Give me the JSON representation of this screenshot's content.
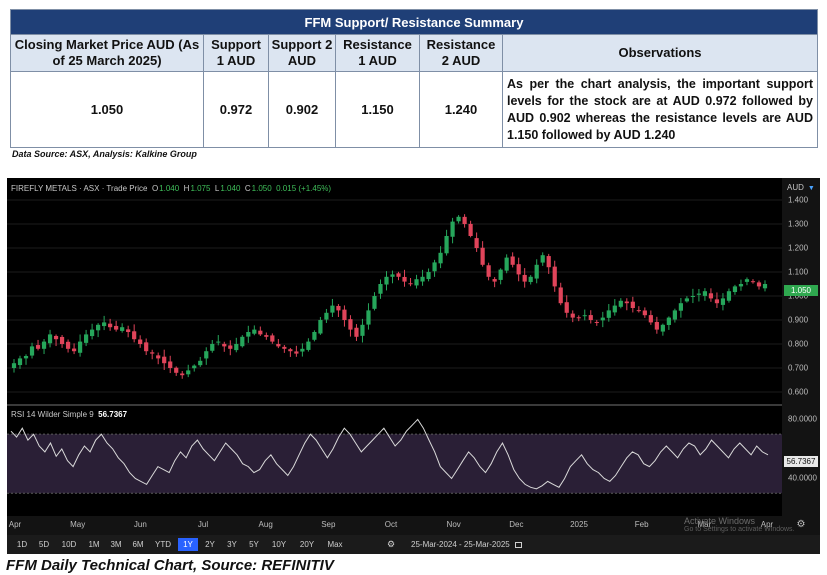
{
  "table": {
    "title": "FFM Support/  Resistance Summary",
    "headers": [
      "Closing Market Price AUD (As of 25 March 2025)",
      "Support 1 AUD",
      "Support 2 AUD",
      "Resistance 1 AUD",
      "Resistance 2 AUD",
      "Observations"
    ],
    "values": [
      "1.050",
      "0.972",
      "0.902",
      "1.150",
      "1.240"
    ],
    "observations": "As per the chart analysis, the important support levels for the stock are at AUD 0.972 followed by AUD 0.902 whereas the resistance levels are AUD 1.150 followed by AUD 1.240"
  },
  "source_note": "Data Source: ASX, Analysis: Kalkine Group",
  "chart": {
    "instrument": "FIREFLY METALS · ASX · Trade Price",
    "ohlc": [
      {
        "key": "O",
        "value": "1.040"
      },
      {
        "key": "H",
        "value": "1.075"
      },
      {
        "key": "L",
        "value": "1.040"
      },
      {
        "key": "C",
        "value": "1.050"
      }
    ],
    "change": "0.015 (+1.45%)",
    "currency_select": "AUD",
    "last_price_badge": "1.050",
    "rsi_label": "RSI 14 Wilder Simple 9",
    "rsi_value": "56.7367",
    "rsi_badge": "56.7367",
    "watermark_title": "Activate Windows",
    "watermark_sub": "Go to Settings to activate Windows.",
    "date_range": "25-Mar-2024 - 25-Mar-2025",
    "ranges": [
      "1D",
      "5D",
      "10D",
      "1M",
      "3M",
      "6M",
      "YTD",
      "1Y",
      "2Y",
      "3Y",
      "5Y",
      "10Y",
      "20Y",
      "Max"
    ],
    "active_range": "1Y",
    "colors": {
      "up": "#26a65b",
      "down": "#e0445a",
      "rsi_line": "#d9d9d9",
      "active": "#2962ff"
    }
  },
  "caption": "FFM Daily Technical Chart, Source: REFINITIV",
  "chart_data": [
    {
      "type": "candlestick",
      "title": "FIREFLY METALS · ASX · Trade Price",
      "x_ticks": [
        "Apr",
        "May",
        "Jun",
        "Jul",
        "Aug",
        "Sep",
        "Oct",
        "Nov",
        "Dec",
        "2025",
        "Feb",
        "Mar",
        "Apr"
      ],
      "y_ticks": [
        "1.400",
        "1.300",
        "1.200",
        "1.100",
        "1.000",
        "0.900",
        "0.800",
        "0.700",
        "0.600"
      ],
      "ylim": [
        0.6,
        1.45
      ],
      "close_path": [
        0.72,
        0.74,
        0.75,
        0.79,
        0.78,
        0.81,
        0.84,
        0.82,
        0.8,
        0.78,
        0.77,
        0.81,
        0.84,
        0.86,
        0.88,
        0.89,
        0.87,
        0.86,
        0.87,
        0.85,
        0.82,
        0.8,
        0.77,
        0.76,
        0.74,
        0.72,
        0.7,
        0.68,
        0.67,
        0.69,
        0.71,
        0.73,
        0.77,
        0.8,
        0.81,
        0.79,
        0.78,
        0.8,
        0.83,
        0.85,
        0.86,
        0.84,
        0.83,
        0.81,
        0.79,
        0.78,
        0.77,
        0.76,
        0.78,
        0.81,
        0.85,
        0.9,
        0.93,
        0.96,
        0.94,
        0.9,
        0.86,
        0.83,
        0.88,
        0.94,
        1.0,
        1.05,
        1.08,
        1.09,
        1.08,
        1.06,
        1.05,
        1.07,
        1.08,
        1.1,
        1.14,
        1.18,
        1.25,
        1.31,
        1.33,
        1.3,
        1.25,
        1.2,
        1.13,
        1.08,
        1.06,
        1.11,
        1.16,
        1.13,
        1.09,
        1.06,
        1.08,
        1.13,
        1.17,
        1.12,
        1.04,
        0.97,
        0.93,
        0.91,
        0.91,
        0.92,
        0.9,
        0.89,
        0.91,
        0.94,
        0.96,
        0.98,
        0.97,
        0.95,
        0.94,
        0.92,
        0.89,
        0.86,
        0.88,
        0.91,
        0.94,
        0.97,
        0.99,
        1.0,
        1.01,
        1.02,
        0.99,
        0.97,
        0.99,
        1.02,
        1.04,
        1.05,
        1.07,
        1.06,
        1.04,
        1.05
      ]
    },
    {
      "type": "line",
      "title": "RSI 14 Wilder Simple 9",
      "y_ticks": [
        "80.0000",
        "40.0000"
      ],
      "ylim": [
        20,
        85
      ],
      "values": [
        72,
        68,
        74,
        66,
        70,
        62,
        58,
        64,
        55,
        60,
        52,
        48,
        56,
        62,
        58,
        66,
        70,
        64,
        60,
        54,
        50,
        44,
        40,
        38,
        36,
        42,
        48,
        46,
        44,
        52,
        58,
        54,
        62,
        66,
        60,
        56,
        52,
        58,
        64,
        60,
        56,
        50,
        48,
        44,
        46,
        52,
        56,
        50,
        46,
        42,
        48,
        56,
        64,
        70,
        66,
        60,
        54,
        60,
        68,
        74,
        70,
        64,
        58,
        62,
        66,
        70,
        74,
        68,
        62,
        66,
        72,
        76,
        80,
        74,
        66,
        58,
        48,
        44,
        40,
        46,
        52,
        58,
        54,
        48,
        44,
        50,
        58,
        64,
        56,
        46,
        40,
        36,
        34,
        33,
        35,
        38,
        36,
        34,
        40,
        48,
        52,
        56,
        50,
        46,
        44,
        40,
        38,
        42,
        48,
        54,
        58,
        56,
        50,
        48,
        52,
        58,
        62,
        58,
        54,
        60,
        64,
        62,
        56,
        60,
        66,
        62,
        58,
        54,
        60,
        64,
        60,
        56,
        62,
        58,
        56
      ]
    }
  ]
}
